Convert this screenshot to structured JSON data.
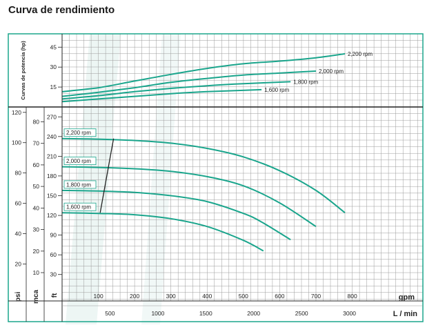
{
  "title": "Curva de rendimiento",
  "colors": {
    "curve": "#1aa58c",
    "border": "#1aa58c",
    "grid": "#9a9a9a",
    "band": "#e8f4f1",
    "axis": "#222222"
  },
  "chart_data": {
    "type": "line",
    "x_axis": {
      "unit_label": "gpm",
      "ticks": [
        100,
        200,
        300,
        400,
        500,
        600,
        700,
        800
      ],
      "secondary_unit_label": "L / min",
      "secondary_ticks": [
        500,
        1000,
        1500,
        2000,
        2500,
        3000
      ],
      "gpm_per_lmin": 0.26417
    },
    "power_panel": {
      "ylabel": "Curvas de potencia (hp)",
      "ticks": [
        15,
        30,
        45
      ],
      "ylim": [
        0,
        55
      ],
      "series": [
        {
          "name": "2,200 rpm",
          "x": [
            0,
            100,
            200,
            300,
            400,
            500,
            600,
            700,
            780
          ],
          "y": [
            11.5,
            14.5,
            19.5,
            24.5,
            29,
            32.5,
            34.5,
            37,
            40
          ]
        },
        {
          "name": "2,000 rpm",
          "x": [
            0,
            100,
            200,
            300,
            400,
            500,
            600,
            700
          ],
          "y": [
            8,
            11,
            14.5,
            18.5,
            21.5,
            24,
            25.5,
            27
          ]
        },
        {
          "name": "1,800 rpm",
          "x": [
            0,
            100,
            200,
            300,
            400,
            500,
            630
          ],
          "y": [
            6,
            8.5,
            11.5,
            14,
            16,
            17.5,
            19
          ]
        },
        {
          "name": "1,600 rpm",
          "x": [
            0,
            100,
            200,
            300,
            400,
            550
          ],
          "y": [
            4,
            6,
            8,
            10,
            11.5,
            13
          ]
        }
      ]
    },
    "head_panel": {
      "ft_label": "ft",
      "mca_label": "mca",
      "psi_label": "psi",
      "ft_ticks": [
        30,
        60,
        90,
        120,
        150,
        180,
        210,
        240,
        270
      ],
      "mca_ticks": [
        10,
        20,
        30,
        40,
        50,
        60,
        70,
        80
      ],
      "psi_ticks": [
        20,
        40,
        60,
        80,
        100,
        120
      ],
      "ylim_ft": [
        15,
        285
      ],
      "series": [
        {
          "name": "2,200 rpm",
          "x": [
            0,
            100,
            200,
            300,
            400,
            500,
            600,
            700,
            780
          ],
          "y": [
            237,
            236,
            234,
            230,
            222,
            209,
            188,
            158,
            124
          ]
        },
        {
          "name": "2,000 rpm",
          "x": [
            0,
            100,
            200,
            300,
            400,
            500,
            600,
            700
          ],
          "y": [
            194,
            193,
            191,
            187,
            179,
            165,
            139,
            103
          ]
        },
        {
          "name": "1,800 rpm",
          "x": [
            0,
            100,
            200,
            300,
            400,
            500,
            550,
            630
          ],
          "y": [
            158,
            157,
            155,
            150,
            141,
            123,
            110,
            83
          ]
        },
        {
          "name": "1,600 rpm",
          "x": [
            0,
            100,
            200,
            300,
            400,
            500,
            555
          ],
          "y": [
            124,
            123,
            121,
            115,
            103,
            82,
            66
          ]
        }
      ],
      "rated_line": {
        "x": [
          105,
          142
        ],
        "y": [
          124,
          237
        ]
      }
    }
  }
}
